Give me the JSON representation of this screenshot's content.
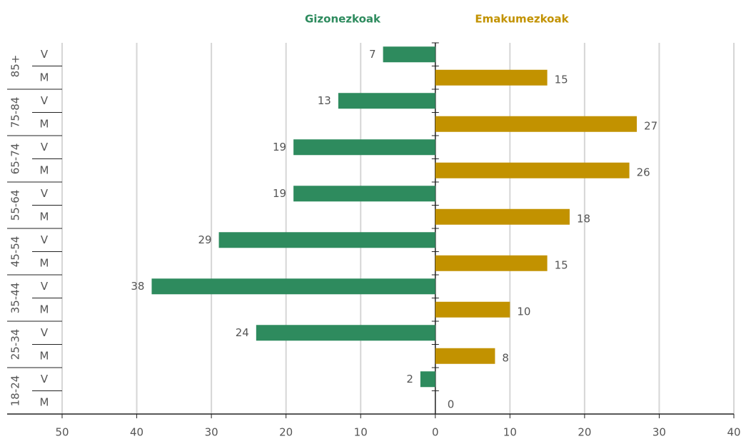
{
  "chart_data": {
    "type": "pyramid",
    "categories": [
      "85+",
      "75-84",
      "65-74",
      "55-64",
      "45-54",
      "35-44",
      "25-34",
      "18-24"
    ],
    "subcategories": [
      "V",
      "M"
    ],
    "series": [
      {
        "name": "Gizonezkoak",
        "color": "#2e8b5e",
        "side": "left",
        "values": [
          7,
          13,
          19,
          19,
          29,
          38,
          24,
          2
        ]
      },
      {
        "name": "Emakumezkoak",
        "color": "#c29200",
        "side": "right",
        "values": [
          15,
          27,
          26,
          18,
          15,
          10,
          8,
          0
        ]
      }
    ],
    "xlim": [
      -50,
      40
    ],
    "xticks": [
      {
        "value": -50,
        "label": "50"
      },
      {
        "value": -40,
        "label": "40"
      },
      {
        "value": -30,
        "label": "30"
      },
      {
        "value": -20,
        "label": "20"
      },
      {
        "value": -10,
        "label": "10"
      },
      0,
      10,
      20,
      30,
      40
    ],
    "grid": true
  }
}
